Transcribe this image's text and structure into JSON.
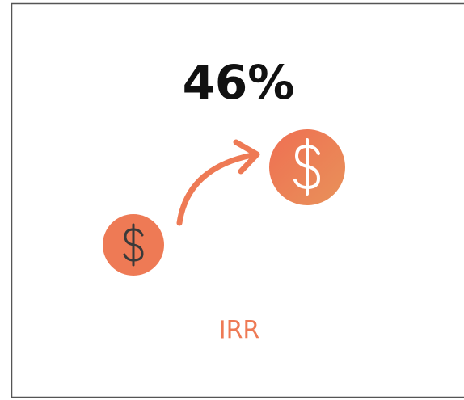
{
  "stat": {
    "value": "46%",
    "label": "IRR"
  }
}
